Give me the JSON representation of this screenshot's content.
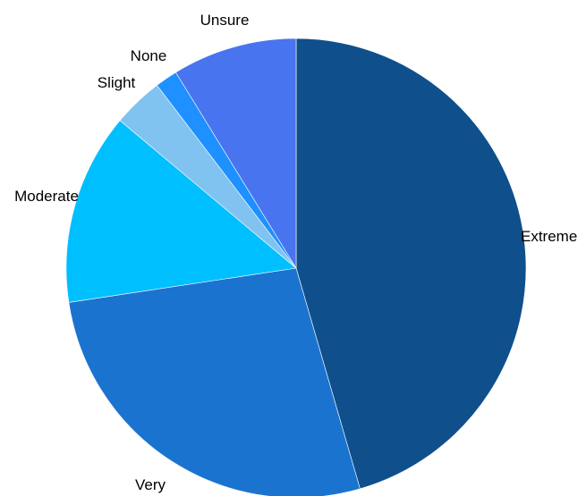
{
  "chart_data": {
    "type": "pie",
    "title": "",
    "legend": "none",
    "start_angle_deg": 0,
    "direction": "clockwise",
    "slices": [
      {
        "label": "Extreme",
        "value": 46.2,
        "color": "#0f4f8b"
      },
      {
        "label": "Very",
        "value": 27.5,
        "color": "#1a74cf"
      },
      {
        "label": "Moderate",
        "value": 13.7,
        "color": "#00bfff"
      },
      {
        "label": "Slight",
        "value": 3.6,
        "color": "#80c3f0"
      },
      {
        "label": "None",
        "value": 1.6,
        "color": "#1e90ff"
      },
      {
        "label": "Unsure",
        "value": 8.9,
        "color": "#4974ef"
      }
    ]
  }
}
